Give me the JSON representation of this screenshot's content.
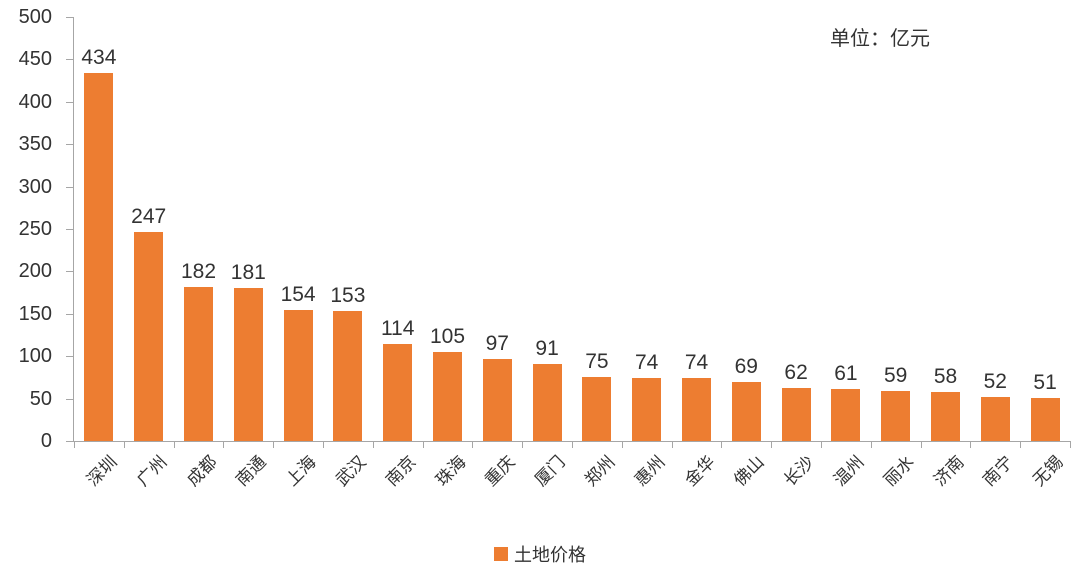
{
  "chart_data": {
    "type": "bar",
    "unit_label": "单位：亿元",
    "categories": [
      "深圳",
      "广州",
      "成都",
      "南通",
      "上海",
      "武汉",
      "南京",
      "珠海",
      "重庆",
      "厦门",
      "郑州",
      "惠州",
      "金华",
      "佛山",
      "长沙",
      "温州",
      "丽水",
      "济南",
      "南宁",
      "无锡"
    ],
    "series": [
      {
        "name": "土地价格",
        "values": [
          434,
          247,
          182,
          181,
          154,
          153,
          114,
          105,
          97,
          91,
          75,
          74,
          74,
          69,
          62,
          61,
          59,
          58,
          52,
          51
        ]
      }
    ],
    "ylim": [
      0,
      500
    ],
    "yticks": [
      0,
      50,
      100,
      150,
      200,
      250,
      300,
      350,
      400,
      450,
      500
    ],
    "grid": false,
    "legend_position": "bottom",
    "x_label_rotation_deg": -45,
    "bar_color": "#ED7D31",
    "text_color": "#333333",
    "axis_color": "#A6A6A6",
    "background_color": "#FFFFFF"
  }
}
